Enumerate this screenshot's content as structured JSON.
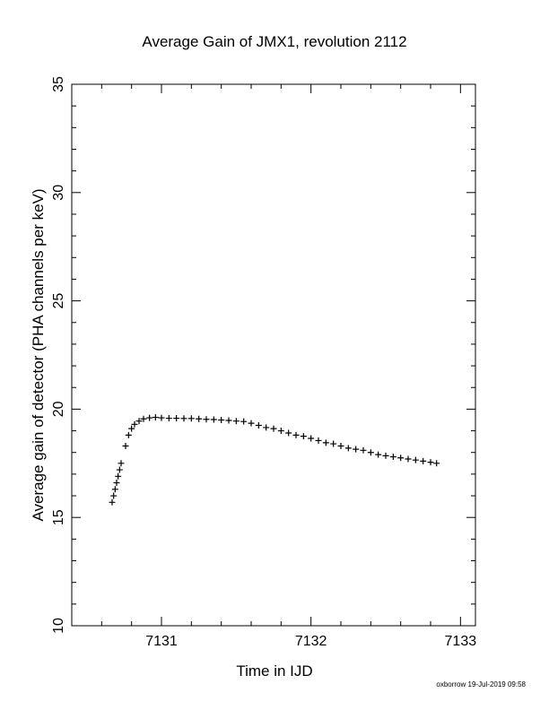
{
  "chart_data": {
    "type": "scatter",
    "title": "Average Gain of JMX1, revolution 2112",
    "xlabel": "Time in IJD",
    "ylabel": "Average gain of detector (PHA channels per keV)",
    "xlim": [
      7130.4,
      7133.1
    ],
    "ylim": [
      10,
      35
    ],
    "xticks": [
      7131,
      7132,
      7133
    ],
    "yticks": [
      10,
      15,
      20,
      25,
      30,
      35
    ],
    "marker": "plus",
    "color": "#000000",
    "grid": false,
    "series": [
      {
        "x": [
          7130.67,
          7130.68,
          7130.69,
          7130.7,
          7130.71,
          7130.72,
          7130.73,
          7130.76,
          7130.78,
          7130.8,
          7130.82,
          7130.85,
          7130.88,
          7130.92,
          7130.96,
          7131.0,
          7131.05,
          7131.1,
          7131.15,
          7131.2,
          7131.25,
          7131.3,
          7131.35,
          7131.4,
          7131.45,
          7131.5,
          7131.55,
          7131.6,
          7131.65,
          7131.7,
          7131.75,
          7131.8,
          7131.85,
          7131.9,
          7131.95,
          7132.0,
          7132.05,
          7132.1,
          7132.15,
          7132.2,
          7132.25,
          7132.3,
          7132.35,
          7132.4,
          7132.45,
          7132.5,
          7132.55,
          7132.6,
          7132.65,
          7132.7,
          7132.75,
          7132.8,
          7132.84
        ],
        "y": [
          15.7,
          16.0,
          16.3,
          16.6,
          16.9,
          17.2,
          17.5,
          18.3,
          18.8,
          19.1,
          19.3,
          19.45,
          19.55,
          19.6,
          19.62,
          19.6,
          19.58,
          19.58,
          19.57,
          19.57,
          19.55,
          19.53,
          19.52,
          19.5,
          19.48,
          19.45,
          19.43,
          19.35,
          19.25,
          19.15,
          19.1,
          19.0,
          18.9,
          18.8,
          18.75,
          18.65,
          18.55,
          18.45,
          18.4,
          18.3,
          18.2,
          18.15,
          18.1,
          18.0,
          17.9,
          17.85,
          17.8,
          17.75,
          17.7,
          17.65,
          17.6,
          17.55,
          17.5
        ]
      }
    ]
  },
  "footer": {
    "credit": "oxborrow 19-Jul-2019 09:58"
  }
}
